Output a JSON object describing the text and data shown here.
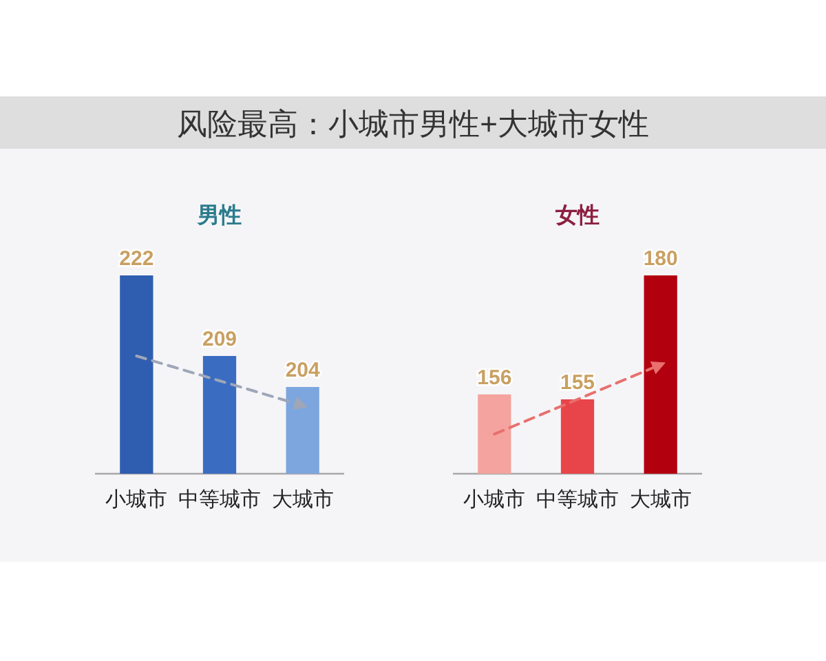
{
  "chart_data": [
    {
      "type": "other",
      "title": "风险最高：小城市男性+大城市女性"
    },
    {
      "type": "bar",
      "title": "男性",
      "categories": [
        "小城市",
        "中等城市",
        "大城市"
      ],
      "series": [
        {
          "values": [
            222,
            209,
            204
          ],
          "colors": [
            "#2f5db0",
            "#3a6cc2",
            "#7da6de"
          ],
          "value_labels": [
            "222",
            "209",
            "204"
          ]
        },
        {
          "type": "line",
          "line_style": "dashed",
          "color": "#9ea6b8",
          "values": [
            209,
            205,
            201
          ]
        }
      ],
      "ylim": [
        190,
        222
      ],
      "tick_labels": "x"
    },
    {
      "type": "bar",
      "title": "女性",
      "categories": [
        "小城市",
        "中等城市",
        "大城市"
      ],
      "series": [
        {
          "values": [
            156,
            155,
            180
          ],
          "colors": [
            "#f4a39e",
            "#e8454a",
            "#b3000f"
          ],
          "value_labels": [
            "156",
            "155",
            "180"
          ]
        },
        {
          "type": "line",
          "line_style": "dashed",
          "color": "#e8706e",
          "values": [
            148,
            155,
            162
          ]
        }
      ],
      "ylim": [
        140,
        180
      ],
      "tick_labels": "x"
    }
  ]
}
